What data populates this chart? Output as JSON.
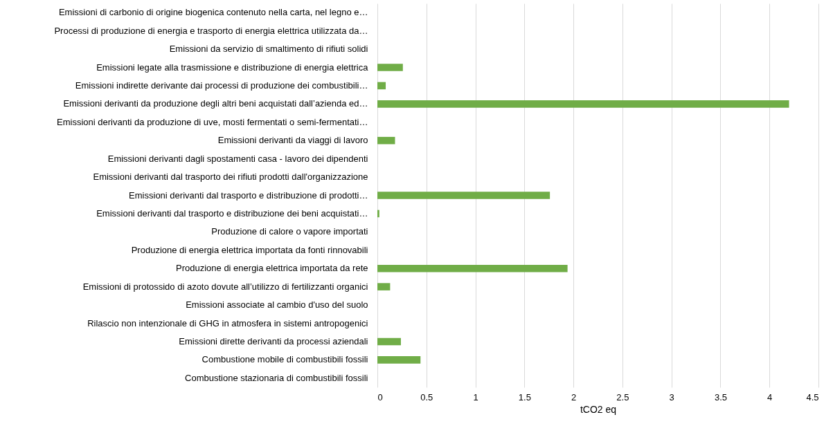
{
  "chart_data": {
    "type": "bar",
    "orientation": "horizontal",
    "xlabel": "tCO2 eq",
    "categories": [
      "Emissioni di carbonio di origine biogenica contenuto nella carta, nel legno  e…",
      "Processi di produzione di energia e trasporto di energia elettrica utilizzata da…",
      "Emissioni da servizio di smaltimento di rifiuti solidi ",
      "Emissioni legate alla trasmissione e distribuzione  di energia elettrica",
      "Emissioni indirette derivante dai processi di produzione dei combustibili…",
      "Emissioni derivanti da produzione degli altri beni acquistati dall’azienda ed…",
      "Emissioni derivanti da produzione di uve, mosti fermentati o semi-fermentati…",
      "Emissioni derivanti da viaggi di lavoro",
      "Emissioni derivanti dagli spostamenti casa - lavoro dei dipendenti",
      "Emissioni derivanti dal trasporto dei rifiuti prodotti dall'organizzazione",
      "Emissioni derivanti dal trasporto e distribuzione di prodotti…",
      "Emissioni derivanti dal trasporto e distribuzione dei beni acquistati…",
      "Produzione di calore o vapore importati",
      "Produzione di energia elettrica importata da fonti rinnovabili ",
      "Produzione di energia elettrica importata da rete",
      "Emissioni di protossido di azoto dovute all’utilizzo di fertilizzanti organici",
      "Emissioni associate al cambio d'uso del suolo ",
      "Rilascio non intenzionale di GHG in atmosfera in sistemi antropogenici",
      "Emissioni dirette derivanti da processi aziendali ",
      "Combustione mobile di combustibili fossili",
      "Combustione stazionaria di combustibili fossili"
    ],
    "values": [
      0,
      0,
      0,
      0.26,
      0.085,
      4.2,
      0,
      0.18,
      0,
      0,
      1.76,
      0.02,
      0,
      0,
      1.94,
      0.13,
      0,
      0,
      0.24,
      0.44,
      0
    ],
    "color": "#70ad47",
    "xlim": [
      0,
      4.5
    ],
    "xticks": [
      0,
      0.5,
      1,
      1.5,
      2,
      2.5,
      3,
      3.5,
      4,
      4.5
    ],
    "grid": "x"
  }
}
